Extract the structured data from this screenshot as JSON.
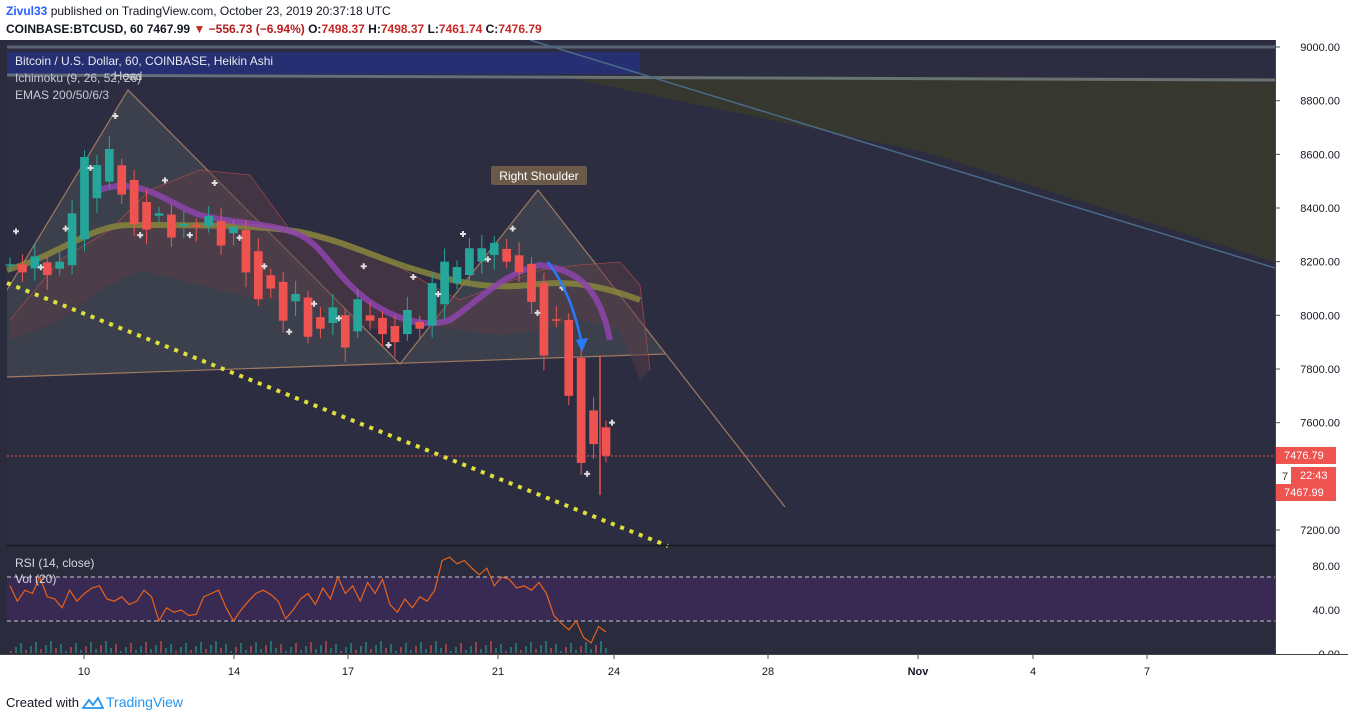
{
  "header": {
    "user": "Zivul33",
    "published": "published on TradingView.com, October 23, 2019 20:37:18 UTC",
    "symbol": "COINBASE:BTCUSD, 60",
    "last": "7467.99",
    "arrow": "▼",
    "change": "−556.73 (−6.94%)",
    "o_label": "O:",
    "o": "7498.37",
    "h_label": "H:",
    "h": "7498.37",
    "l_label": "L:",
    "l": "7461.74",
    "c_label": "C:",
    "c": "7476.79"
  },
  "legend": {
    "main": "Bitcoin / U.S. Dollar, 60, COINBASE, Heikin Ashi",
    "ichimoku": "Ichimoku (9, 26, 52, 26)",
    "emas": "EMAS 200/50/6/3",
    "rsi": "RSI (14, close)",
    "vol": "Vol (20)"
  },
  "annotations": {
    "head": "Head",
    "right_shoulder": "Right Shoulder"
  },
  "price_labels": {
    "c": "7476.79",
    "timer": "22:43",
    "last": "7467.99",
    "partial": "7"
  },
  "footer": {
    "created": "Created with",
    "brand": "TradingView"
  },
  "colors": {
    "background": "#2a2b3c",
    "up": "#26a69a",
    "down": "#ef5350",
    "rsi_line": "#e8621c",
    "rsi_band": "#3d2a5a",
    "ema_olive": "#8c8a3c",
    "ema_purple": "#8e44ad",
    "trend_dotted": "#e0e03a",
    "arrow": "#2979ff"
  },
  "chart_data": [
    {
      "type": "candlestick",
      "title": "Bitcoin / U.S. Dollar, 60, COINBASE, Heikin Ashi",
      "ylim": [
        7150,
        9040
      ],
      "y_ticks": [
        9000,
        8800,
        8600,
        8400,
        8200,
        8000,
        7800,
        7600,
        7400,
        7200
      ],
      "y_tick_labels": [
        "9000.00",
        "8800.00",
        "8600.00",
        "8400.00",
        "8200.00",
        "8000.00",
        "7800.00",
        "7600.00",
        "",
        "7200.00"
      ],
      "x_tick_labels": [
        "10",
        "14",
        "17",
        "21",
        "24",
        "28",
        "Nov",
        "4",
        "7"
      ],
      "series": [
        {
          "values": [
            8190,
            8160,
            8220,
            8150,
            8200,
            8380,
            8590,
            8560,
            8620,
            8450,
            8340,
            8320,
            8380,
            8290,
            8340,
            8330,
            8370,
            8260,
            8330,
            8160,
            8060,
            8100,
            7980,
            8080,
            7920,
            7950,
            8030,
            7880,
            8060,
            7980,
            7930,
            7900,
            8020,
            7950,
            8120,
            8200,
            8180,
            8250,
            8250,
            8270,
            8200,
            8160,
            8050,
            7850,
            7980,
            7700,
            7450,
            7520,
            7477
          ]
        }
      ],
      "last_price": 7476.79
    },
    {
      "type": "line",
      "title": "RSI (14, close)",
      "ylim": [
        0,
        100
      ],
      "y_ticks": [
        80,
        40,
        0
      ],
      "y_tick_labels": [
        "80.00",
        "40.00",
        "0.00"
      ],
      "band": [
        30,
        70
      ],
      "series": [
        {
          "values": [
            62,
            48,
            58,
            55,
            70,
            52,
            50,
            42,
            58,
            48,
            55,
            60,
            62,
            50,
            48,
            52,
            45,
            48,
            58,
            52,
            30,
            42,
            38,
            40,
            35,
            36,
            52,
            55,
            58,
            42,
            30,
            40,
            48,
            55,
            58,
            54,
            48,
            32,
            40,
            50,
            55,
            45,
            60,
            50,
            70,
            55,
            62,
            48,
            65,
            55,
            68,
            45,
            38,
            50,
            42,
            52,
            48,
            58,
            85,
            88,
            82,
            85,
            78,
            72,
            78,
            62,
            70,
            68,
            60,
            62,
            58,
            65,
            55,
            35,
            28,
            22,
            30,
            15,
            10,
            25,
            20
          ]
        }
      ]
    }
  ]
}
